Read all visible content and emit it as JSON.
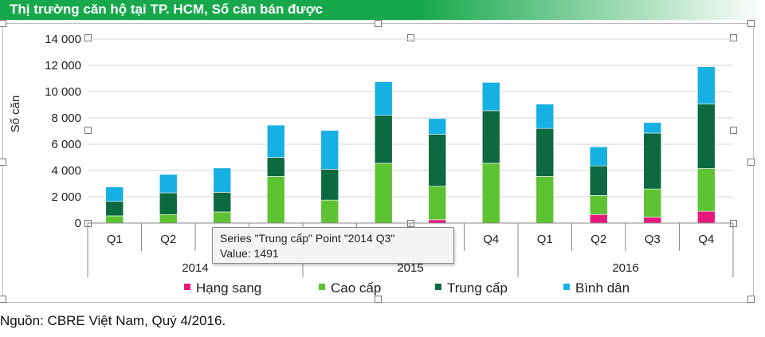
{
  "header": {
    "title": "Thị trường căn hộ tại TP. HCM, Số căn bán được",
    "bg_color": "#17a84b"
  },
  "chart_data": {
    "type": "bar",
    "stacked": true,
    "ylabel": "Số căn",
    "ylim": [
      0,
      14000
    ],
    "yticks": [
      0,
      2000,
      4000,
      6000,
      8000,
      10000,
      12000,
      14000
    ],
    "ytick_labels": [
      "0",
      "2 000",
      "4 000",
      "6 000",
      "8 000",
      "10 000",
      "12 000",
      "14 000"
    ],
    "grid": true,
    "legend_position": "bottom",
    "categories": [
      "Q1",
      "Q2",
      "Q3",
      "Q4",
      "Q1",
      "Q2",
      "Q3",
      "Q4",
      "Q1",
      "Q2",
      "Q3",
      "Q4"
    ],
    "category_labels_visible": [
      "Q1",
      "Q2",
      "Q3",
      "",
      "",
      "",
      "",
      "Q4",
      "Q1",
      "Q2",
      "Q3",
      "Q4"
    ],
    "groups": [
      {
        "label": "2014",
        "start": 0,
        "end": 3
      },
      {
        "label": "2015",
        "start": 4,
        "end": 7
      },
      {
        "label": "2016",
        "start": 8,
        "end": 11
      }
    ],
    "series": [
      {
        "name": "Hạng sang",
        "color": "#e5197d",
        "values": [
          0,
          0,
          0,
          0,
          0,
          0,
          250,
          0,
          0,
          650,
          450,
          900
        ]
      },
      {
        "name": "Cao cấp",
        "color": "#5dc332",
        "values": [
          550,
          650,
          850,
          3550,
          1750,
          4550,
          2550,
          4550,
          3550,
          1450,
          2150,
          3250
        ]
      },
      {
        "name": "Trung cấp",
        "color": "#0d6a40",
        "values": [
          1100,
          1650,
          1491,
          1450,
          2350,
          3650,
          3950,
          4000,
          3650,
          2250,
          4250,
          4900
        ]
      },
      {
        "name": "Bình dân",
        "color": "#17b0e3",
        "values": [
          1100,
          1400,
          1850,
          2450,
          2950,
          2550,
          1200,
          2150,
          1850,
          1450,
          800,
          2850
        ]
      }
    ]
  },
  "tooltip": {
    "line1": "Series \"Trung cấp\" Point \"2014 Q3\"",
    "line2": "Value: 1491"
  },
  "source": "Nguồn: CBRE Việt Nam, Quý 4/2016."
}
